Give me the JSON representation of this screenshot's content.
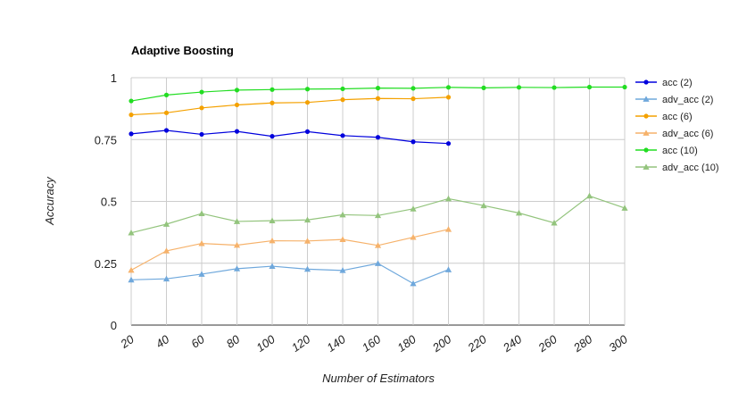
{
  "chart_data": {
    "type": "line",
    "title": "Adaptive Boosting",
    "xlabel": "Number of Estimators",
    "ylabel": "Accuracy",
    "x": [
      20,
      40,
      60,
      80,
      100,
      120,
      140,
      160,
      180,
      200,
      220,
      240,
      260,
      280,
      300
    ],
    "xlim": [
      20,
      300
    ],
    "ylim": [
      0,
      1
    ],
    "yticks": [
      0,
      0.25,
      0.5,
      0.75,
      1
    ],
    "ytick_labels": [
      "0",
      "0.25",
      "0.5",
      "0.75",
      "1"
    ],
    "grid": true,
    "legend_position": "right",
    "series": [
      {
        "name": "acc (2)",
        "color": "#0000dd",
        "marker": "circle",
        "values": [
          0.773,
          0.787,
          0.771,
          0.783,
          0.763,
          0.782,
          0.766,
          0.759,
          0.741,
          0.734,
          null,
          null,
          null,
          null,
          null
        ]
      },
      {
        "name": "adv_acc (2)",
        "color": "#6fa8dc",
        "marker": "triangle",
        "values": [
          0.183,
          0.187,
          0.206,
          0.228,
          0.238,
          0.226,
          0.221,
          0.249,
          0.168,
          0.224,
          null,
          null,
          null,
          null,
          null
        ]
      },
      {
        "name": "acc (6)",
        "color": "#f4a100",
        "marker": "circle",
        "values": [
          0.85,
          0.858,
          0.878,
          0.89,
          0.898,
          0.9,
          0.911,
          0.916,
          0.915,
          0.921,
          null,
          null,
          null,
          null,
          null
        ]
      },
      {
        "name": "adv_acc (6)",
        "color": "#f6b26b",
        "marker": "triangle",
        "values": [
          0.222,
          0.3,
          0.33,
          0.323,
          0.341,
          0.34,
          0.346,
          0.322,
          0.355,
          0.387,
          null,
          null,
          null,
          null,
          null
        ]
      },
      {
        "name": "acc (10)",
        "color": "#22dd22",
        "marker": "circle",
        "values": [
          0.906,
          0.93,
          0.942,
          0.95,
          0.952,
          0.954,
          0.955,
          0.958,
          0.957,
          0.961,
          0.959,
          0.961,
          0.96,
          0.962,
          0.962
        ]
      },
      {
        "name": "adv_acc (10)",
        "color": "#93c47d",
        "marker": "triangle",
        "values": [
          0.373,
          0.408,
          0.451,
          0.419,
          0.422,
          0.425,
          0.446,
          0.443,
          0.47,
          0.511,
          0.483,
          0.453,
          0.413,
          0.522,
          0.473
        ]
      }
    ]
  }
}
